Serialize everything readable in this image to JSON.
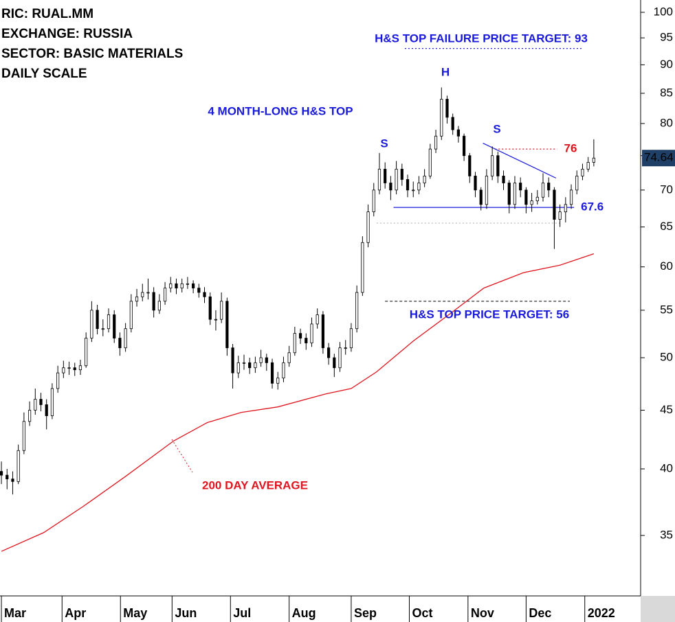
{
  "chart_data": {
    "type": "candlestick",
    "header": [
      "RIC: RUAL.MM",
      "EXCHANGE: RUSSIA",
      "SECTOR: BASIC MATERIALS",
      "DAILY SCALE"
    ],
    "log_scale": true,
    "ylim": [
      31,
      102.5
    ],
    "yticks": [
      35,
      40,
      45,
      50,
      55,
      60,
      65,
      70,
      75,
      80,
      85,
      90,
      95,
      100
    ],
    "xlim": [
      -0.5,
      226.6
    ],
    "xticks": [
      {
        "value": 0,
        "label": "Mar"
      },
      {
        "value": 21.5,
        "label": "Apr"
      },
      {
        "value": 42.2,
        "label": "May"
      },
      {
        "value": 60.5,
        "label": "Jun"
      },
      {
        "value": 81.2,
        "label": "Jul"
      },
      {
        "value": 102,
        "label": "Aug"
      },
      {
        "value": 124,
        "label": "Sep"
      },
      {
        "value": 144.6,
        "label": "Oct"
      },
      {
        "value": 165.4,
        "label": "Nov"
      },
      {
        "value": 186,
        "label": "Dec"
      },
      {
        "value": 206.8,
        "label": "2022"
      }
    ],
    "up_color": "#ffffff",
    "down_color": "#000000",
    "x": [
      0,
      2,
      4,
      6,
      8,
      10,
      12,
      14,
      16,
      18,
      20,
      22,
      24,
      26,
      28,
      30,
      32,
      34,
      36,
      38,
      40,
      42,
      44,
      46,
      48,
      50,
      52,
      54,
      56,
      58,
      60,
      62,
      64,
      66,
      68,
      70,
      72,
      74,
      76,
      78,
      80,
      82,
      84,
      86,
      88,
      90,
      92,
      94,
      96,
      98,
      100,
      102,
      104,
      106,
      108,
      110,
      112,
      114,
      116,
      118,
      120,
      122,
      124,
      126,
      128,
      130,
      132,
      134,
      136,
      138,
      140,
      142,
      144,
      146,
      148,
      150,
      152,
      154,
      156,
      158,
      160,
      162,
      164,
      166,
      168,
      170,
      172,
      174,
      176,
      178,
      180,
      182,
      184,
      186,
      188,
      190,
      192,
      194,
      196,
      198,
      200,
      202,
      204,
      206,
      208,
      210
    ],
    "open": [
      39.8,
      39.5,
      39.2,
      39.0,
      41.5,
      44,
      45,
      46,
      45.5,
      44.5,
      47,
      48.5,
      49,
      49,
      48.8,
      49.2,
      52,
      55,
      53,
      53,
      54.5,
      52,
      51,
      53,
      56,
      56.5,
      57,
      57,
      55,
      56,
      57.5,
      58,
      57.5,
      58,
      58,
      57.5,
      57,
      56.5,
      54,
      54,
      56,
      51,
      48.5,
      49.5,
      49.5,
      49,
      49.5,
      50,
      49.5,
      47.5,
      48,
      49.5,
      50.5,
      52.5,
      52,
      51.5,
      53.5,
      54.5,
      51,
      50,
      49,
      51,
      51,
      53,
      57,
      63,
      67,
      70,
      73,
      71,
      70,
      73,
      71.5,
      70,
      70,
      71,
      72,
      76,
      78,
      84,
      81,
      79,
      78,
      75,
      72,
      70,
      68,
      72,
      75,
      72,
      71,
      68,
      71,
      70,
      68,
      68.5,
      69,
      71,
      70,
      66,
      67,
      68,
      70,
      72,
      73,
      74
    ],
    "high": [
      40.6,
      40.0,
      39.8,
      42.0,
      44.8,
      45.8,
      47.0,
      46.6,
      46.0,
      47.5,
      49.2,
      49.7,
      49.6,
      49.5,
      49.8,
      52.6,
      56.0,
      55.6,
      54.0,
      55.2,
      55.0,
      52.6,
      53.6,
      56.8,
      57.4,
      58.0,
      58.6,
      57.6,
      56.8,
      58.2,
      58.8,
      58.6,
      58.6,
      58.8,
      58.4,
      58.0,
      57.6,
      57.0,
      55.0,
      57.0,
      56.4,
      51.4,
      50.2,
      50.3,
      50.0,
      50.1,
      50.8,
      50.4,
      49.9,
      48.6,
      50.1,
      51.2,
      53.2,
      53.0,
      52.5,
      54.2,
      55.2,
      54.9,
      51.5,
      50.4,
      51.6,
      51.8,
      53.6,
      57.8,
      63.8,
      68.0,
      71.0,
      75.4,
      74.0,
      72.0,
      74.2,
      73.8,
      72.2,
      71.2,
      72.0,
      73.0,
      76.8,
      79.0,
      86.0,
      84.6,
      81.6,
      79.6,
      78.4,
      75.4,
      72.6,
      70.4,
      73.0,
      76.4,
      75.6,
      72.8,
      71.4,
      72.0,
      71.8,
      70.4,
      69.6,
      70.0,
      72.4,
      71.8,
      70.4,
      68.0,
      69.0,
      70.8,
      72.8,
      73.8,
      74.8,
      77.5
    ],
    "low": [
      38.8,
      38.4,
      38.0,
      38.8,
      41.2,
      43.6,
      44.6,
      44.9,
      43.3,
      44.2,
      46.6,
      48.0,
      48.3,
      48.2,
      48.3,
      49.0,
      51.6,
      52.4,
      52.2,
      52.6,
      51.5,
      50.2,
      50.6,
      52.6,
      55.4,
      56.0,
      56.2,
      54.2,
      54.6,
      55.6,
      57.0,
      56.8,
      57.0,
      57.4,
      56.9,
      56.4,
      55.8,
      53.4,
      52.8,
      53.6,
      50.2,
      47.0,
      48.0,
      48.8,
      48.4,
      48.5,
      49.1,
      48.7,
      47.0,
      46.9,
      47.6,
      49.1,
      50.2,
      51.4,
      50.8,
      51.1,
      53.0,
      50.4,
      49.3,
      48.1,
      48.6,
      50.3,
      50.6,
      52.6,
      56.6,
      62.4,
      66.4,
      69.4,
      70.2,
      68.6,
      69.4,
      70.6,
      69.0,
      69.0,
      69.4,
      70.4,
      71.6,
      75.4,
      77.4,
      80.0,
      78.2,
      77.0,
      74.2,
      71.0,
      69.0,
      67.2,
      67.4,
      71.4,
      71.0,
      70.0,
      66.8,
      67.4,
      69.0,
      66.8,
      67.0,
      68.0,
      68.4,
      69.0,
      62.2,
      65.0,
      65.6,
      67.4,
      69.4,
      71.4,
      72.6,
      73.4
    ],
    "close": [
      39.5,
      39.2,
      39.0,
      41.5,
      44,
      45,
      46,
      45.5,
      44.5,
      47,
      48.5,
      49,
      49,
      48.8,
      49.2,
      52,
      55,
      53,
      53,
      54.5,
      52,
      51,
      53,
      56,
      56.5,
      57,
      57,
      55,
      56,
      57.5,
      58,
      57.5,
      58,
      58,
      57.5,
      57,
      56.5,
      54,
      54,
      56,
      51,
      48.5,
      49.5,
      49.5,
      49,
      49.5,
      50,
      49.5,
      47.5,
      48,
      49.5,
      50.5,
      52.5,
      52,
      51.5,
      53.5,
      54.5,
      51,
      50,
      49,
      51,
      51,
      53,
      57,
      63,
      67,
      70,
      73,
      71,
      70,
      73,
      71.5,
      70,
      70,
      71,
      72,
      76,
      78,
      84,
      81,
      79,
      78,
      75,
      72,
      70,
      68,
      72,
      75,
      72,
      71,
      68,
      71,
      70,
      68,
      68.5,
      69,
      71,
      70,
      66,
      67,
      68,
      70,
      72,
      73,
      74,
      74.64
    ],
    "moving_average": {
      "color": "#e0141e",
      "x": [
        0,
        15,
        29,
        44,
        61,
        73,
        85,
        98,
        115,
        124,
        133,
        146,
        159,
        171,
        185,
        198,
        210
      ],
      "values": [
        33.9,
        35.2,
        37.1,
        39.4,
        42.3,
        43.9,
        44.8,
        45.3,
        46.5,
        47.0,
        48.6,
        51.7,
        54.6,
        57.5,
        59.3,
        60.2,
        61.6
      ]
    },
    "levels": [
      {
        "value": 67.6,
        "from": 139,
        "to": 203,
        "color": "#1a1adc",
        "style": "solid",
        "labeled": true
      },
      {
        "value": 76,
        "from": 175,
        "to": 197,
        "color": "#e0141e",
        "style": "dotted",
        "labeled": true
      },
      {
        "value": 93,
        "from": 143,
        "to": 206,
        "color": "#1a1adc",
        "style": "dotted",
        "labeled": false
      },
      {
        "value": 56,
        "from": 136,
        "to": 201.5,
        "color": "#333333",
        "style": "dashed",
        "labeled": false
      },
      {
        "value": 65.5,
        "from": 133,
        "to": 198,
        "color": "#bbbbbb",
        "style": "dotted",
        "labeled": false
      }
    ],
    "trendline": {
      "color": "#1a1adc",
      "x": [
        170.7,
        196.6
      ],
      "y": [
        76.9,
        71.7
      ]
    },
    "annotations": [
      {
        "text": "H&S TOP FAILURE PRICE TARGET: 93",
        "color": "#1a1adc"
      },
      {
        "text": "H",
        "color": "#1a1adc"
      },
      {
        "text": "S",
        "color": "#1a1adc"
      },
      {
        "text": "S",
        "color": "#1a1adc"
      },
      {
        "text": "4 MONTH-LONG H&S TOP",
        "color": "#1a1adc"
      },
      {
        "text": "H&S TOP PRICE TARGET: 56",
        "color": "#1a1adc"
      },
      {
        "text": "200 DAY AVERAGE",
        "color": "#e0141e"
      }
    ],
    "last_price_color": "#1f3f66"
  }
}
